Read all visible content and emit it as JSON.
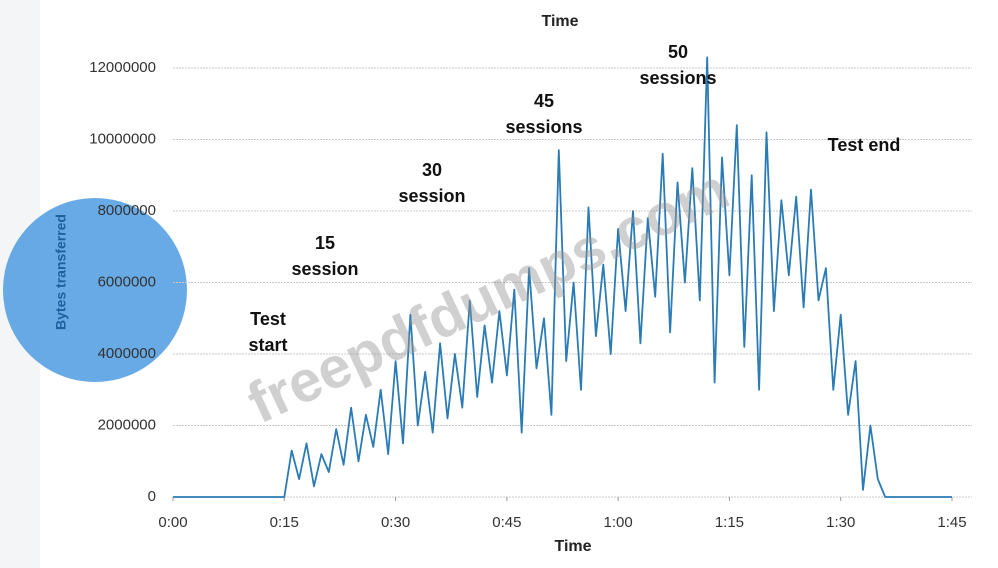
{
  "chart_data": {
    "type": "line",
    "title": "Time",
    "x_label": "Time",
    "y_label": "Bytes transferred",
    "watermark": "freepdfdumps.com",
    "color": "#2b7bb5",
    "grid": true,
    "xlim": [
      0,
      105
    ],
    "xticks": [
      {
        "value": 0,
        "label": "0:00"
      },
      {
        "value": 15,
        "label": "0:15"
      },
      {
        "value": 30,
        "label": "0:30"
      },
      {
        "value": 45,
        "label": "0:45"
      },
      {
        "value": 60,
        "label": "1:00"
      },
      {
        "value": 75,
        "label": "1:15"
      },
      {
        "value": 90,
        "label": "1:30"
      },
      {
        "value": 105,
        "label": "1:45"
      }
    ],
    "ylim": [
      0,
      12000000
    ],
    "yticks": [
      0,
      2000000,
      4000000,
      6000000,
      8000000,
      10000000,
      12000000
    ],
    "annotations": [
      {
        "lines": [
          "Test",
          "start"
        ]
      },
      {
        "lines": [
          "15",
          "session"
        ]
      },
      {
        "lines": [
          "30",
          "session"
        ]
      },
      {
        "lines": [
          "45",
          "sessions"
        ]
      },
      {
        "lines": [
          "50",
          "sessions"
        ]
      },
      {
        "lines": [
          "Test end"
        ]
      }
    ],
    "x": [
      0,
      15,
      16,
      17,
      18,
      19,
      20,
      21,
      22,
      23,
      24,
      25,
      26,
      27,
      28,
      29,
      30,
      31,
      32,
      33,
      34,
      35,
      36,
      37,
      38,
      39,
      40,
      41,
      42,
      43,
      44,
      45,
      46,
      47,
      48,
      49,
      50,
      51,
      52,
      53,
      54,
      55,
      56,
      57,
      58,
      59,
      60,
      61,
      62,
      63,
      64,
      65,
      66,
      67,
      68,
      69,
      70,
      71,
      72,
      73,
      74,
      75,
      76,
      77,
      78,
      79,
      80,
      81,
      82,
      83,
      84,
      85,
      86,
      87,
      88,
      89,
      90,
      91,
      92,
      93,
      94,
      95,
      96,
      105
    ],
    "values": [
      0,
      0,
      1300000,
      500000,
      1500000,
      300000,
      1200000,
      700000,
      1900000,
      900000,
      2500000,
      1000000,
      2300000,
      1400000,
      3000000,
      1200000,
      3800000,
      1500000,
      5100000,
      2000000,
      3500000,
      1800000,
      4300000,
      2200000,
      4000000,
      2500000,
      5500000,
      2800000,
      4800000,
      3200000,
      5200000,
      3400000,
      5800000,
      1800000,
      6400000,
      3600000,
      5000000,
      2300000,
      9700000,
      3800000,
      6000000,
      3000000,
      8100000,
      4500000,
      6500000,
      4000000,
      7500000,
      5200000,
      8000000,
      4300000,
      7800000,
      5600000,
      9600000,
      4600000,
      8800000,
      6000000,
      9200000,
      5500000,
      12300000,
      3200000,
      9500000,
      6200000,
      10400000,
      4200000,
      9000000,
      3000000,
      10200000,
      5200000,
      8300000,
      6200000,
      8400000,
      5300000,
      8600000,
      5500000,
      6400000,
      3000000,
      5100000,
      2300000,
      3800000,
      200000,
      2000000,
      500000,
      0,
      0
    ]
  }
}
